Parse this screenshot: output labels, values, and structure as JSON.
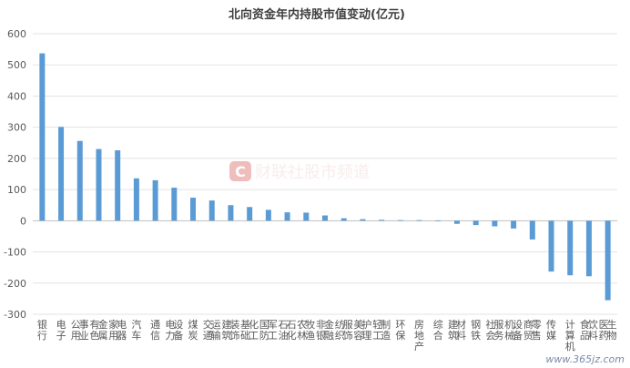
{
  "chart_data": {
    "type": "bar",
    "title": "北向资金年内持股市值变动(亿元)",
    "xlabel": "",
    "ylabel": "",
    "ylim": [
      -300,
      600
    ],
    "yticks": [
      600,
      500,
      400,
      300,
      200,
      100,
      0,
      -100,
      -200,
      -300
    ],
    "grid": true,
    "bar_color": "#5b9bd5",
    "categories": [
      "银行",
      "电子",
      "公用事业",
      "有色金属",
      "家用电器",
      "汽车",
      "通信",
      "电力设备",
      "煤炭",
      "交通运输",
      "建筑装饰",
      "基础化工",
      "国防军工",
      "石油石化",
      "农林牧渔",
      "非银金融",
      "纺织服饰",
      "美容护理",
      "轻工制造",
      "环保",
      "房地产",
      "综合",
      "建筑材料",
      "钢铁",
      "社会服务",
      "机械设备",
      "商贸零售",
      "传媒",
      "计算机",
      "食品饮料",
      "医药生物"
    ],
    "values": [
      537,
      301,
      256,
      230,
      226,
      136,
      130,
      106,
      74,
      65,
      50,
      44,
      35,
      27,
      26,
      17,
      8,
      5,
      3,
      2,
      2,
      1,
      -10,
      -14,
      -18,
      -25,
      -60,
      -163,
      -175,
      -178,
      -255
    ]
  },
  "watermark": {
    "logo_letter": "C",
    "text": "财联社股市频道",
    "color": "#d9534f"
  },
  "site_watermark": "www.365jz.com"
}
